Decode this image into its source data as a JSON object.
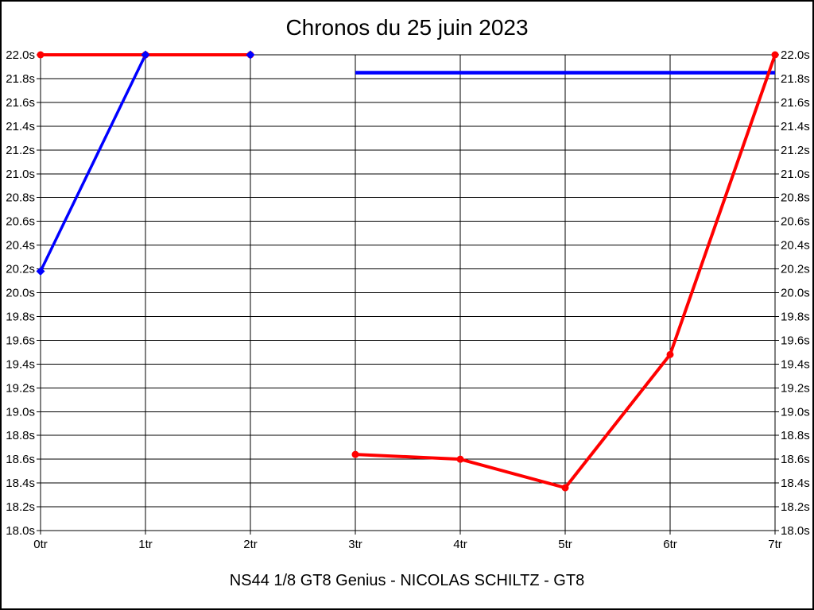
{
  "chart_data": {
    "type": "line",
    "title": "Chronos du 25 juin 2023",
    "footer_label": "NS44 1/8 GT8 Genius - NICOLAS SCHILTZ - GT8",
    "xlabel": "",
    "ylabel": "",
    "x_unit": "tr",
    "x_ticks": [
      "0tr",
      "1tr",
      "2tr",
      "3tr",
      "4tr",
      "5tr",
      "6tr",
      "7tr"
    ],
    "y_axis": {
      "min": 18.0,
      "max": 22.0,
      "step": 0.2,
      "suffix": "s",
      "labels_both_sides": true
    },
    "grid": true,
    "legend_position": "none",
    "colors": {
      "lap_time_series": "#ff0000",
      "reference_series": "#0000ff",
      "grid": "#000000",
      "text": "#000000",
      "background": "#ffffff"
    },
    "series": [
      {
        "name": "blue-opening-laps",
        "color": "#0000ff",
        "marker": "diamond",
        "line_width": 3.5,
        "segments": [
          {
            "x": [
              0,
              1,
              2
            ],
            "y": [
              20.18,
              22.0,
              22.0
            ]
          }
        ]
      },
      {
        "name": "blue-reference-line",
        "color": "#0000ff",
        "marker": "none",
        "line_width": 4.5,
        "segments": [
          {
            "x": [
              3,
              7
            ],
            "y": [
              21.85,
              21.85
            ]
          }
        ]
      },
      {
        "name": "red-lap-times",
        "color": "#ff0000",
        "marker": "circle",
        "line_width": 4,
        "segments": [
          {
            "x": [
              0,
              1,
              2
            ],
            "y": [
              22.0,
              22.0,
              22.0
            ]
          },
          {
            "x": [
              3,
              4,
              5,
              6,
              7
            ],
            "y": [
              18.64,
              18.6,
              18.36,
              19.48,
              22.0
            ]
          }
        ]
      }
    ]
  }
}
